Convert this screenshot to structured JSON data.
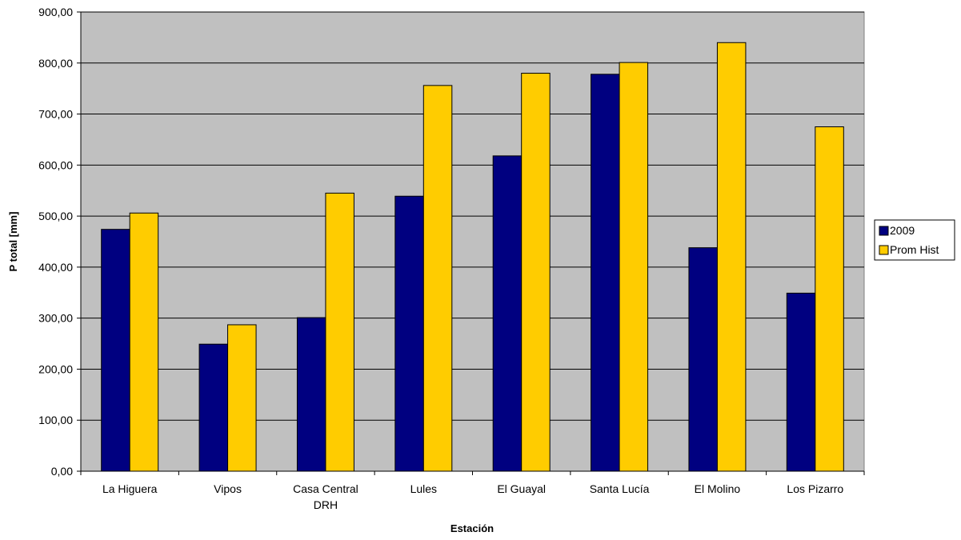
{
  "chart_data": {
    "type": "bar",
    "title": "",
    "xlabel": "Estación",
    "ylabel": "P total [mm]",
    "ylim": [
      0,
      900
    ],
    "ytick_step": 100,
    "ytick_labels": [
      "0,00",
      "100,00",
      "200,00",
      "300,00",
      "400,00",
      "500,00",
      "600,00",
      "700,00",
      "800,00",
      "900,00"
    ],
    "grid": true,
    "legend_position": "right",
    "categories": [
      [
        "La Higuera"
      ],
      [
        "Vipos"
      ],
      [
        "Casa Central",
        "DRH"
      ],
      [
        "Lules"
      ],
      [
        "El Guayal"
      ],
      [
        "Santa Lucía"
      ],
      [
        "El Molino"
      ],
      [
        "Los Pizarro"
      ]
    ],
    "series": [
      {
        "name": "2009",
        "color": "#000080",
        "values": [
          474,
          249,
          301,
          539,
          618,
          778,
          438,
          349
        ]
      },
      {
        "name": "Prom Hist",
        "color": "#FFCC00",
        "values": [
          506,
          287,
          545,
          756,
          780,
          801,
          840,
          675
        ]
      }
    ],
    "plot_background": "#C0C0C0"
  }
}
